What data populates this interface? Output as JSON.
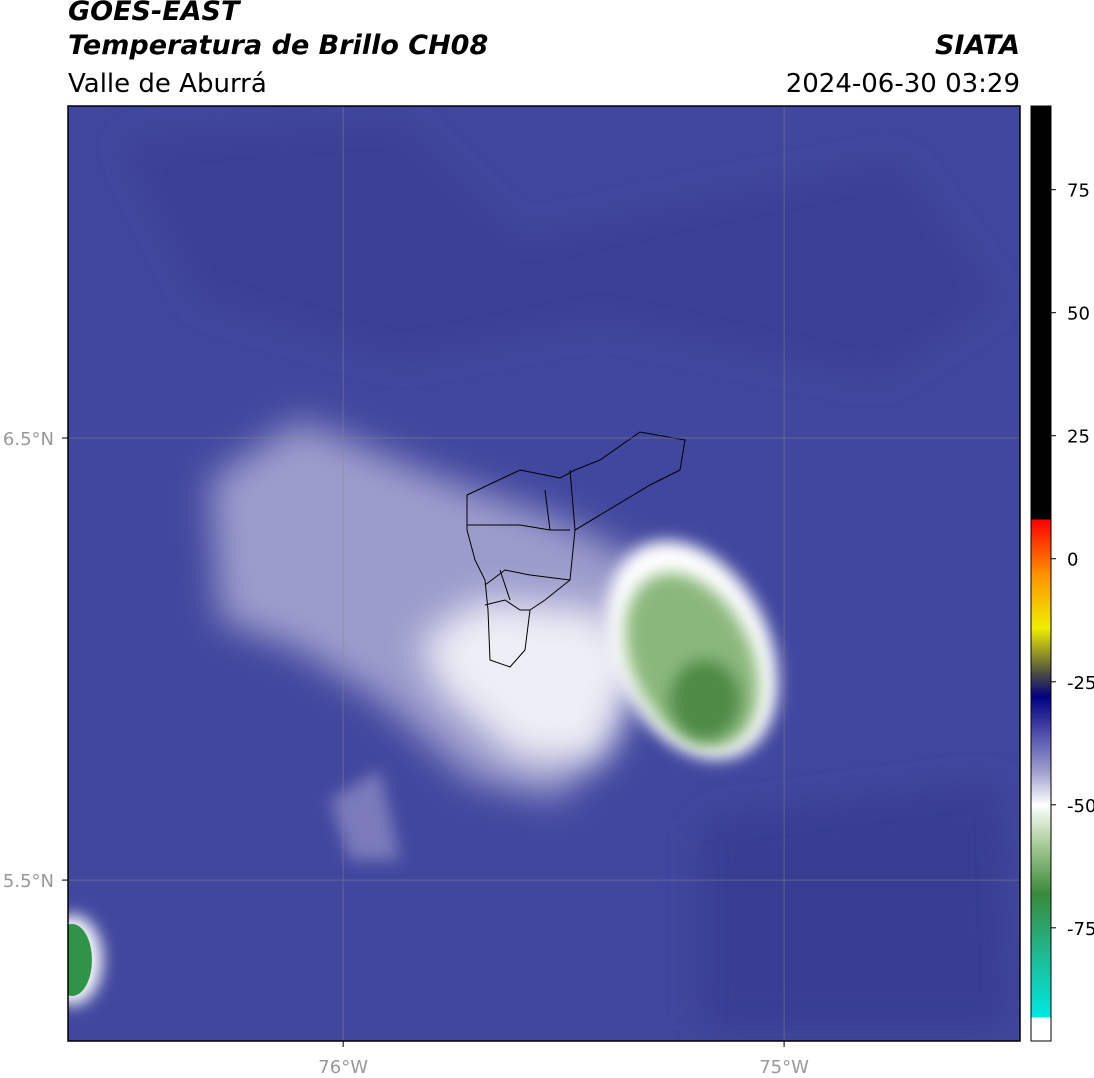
{
  "header": {
    "title": "GOES-EAST",
    "subtitle": "Temperatura de Brillo CH08",
    "region": "Valle de Aburrá",
    "organization": "SIATA",
    "datetime": "2024-06-30 03:29"
  },
  "map": {
    "xlim": [
      -76.624,
      -74.465
    ],
    "ylim": [
      5.136,
      7.251
    ],
    "xticks": [
      {
        "value": -76,
        "label": "76°W"
      },
      {
        "value": -75,
        "label": "75°W"
      }
    ],
    "yticks": [
      {
        "value": 6.5,
        "label": "6.5°N"
      },
      {
        "value": 5.5,
        "label": "5.5°N"
      }
    ]
  },
  "colorbar": {
    "lim": [
      -98,
      92
    ],
    "ticks": [
      75,
      50,
      25,
      0,
      -25,
      -50,
      -75
    ],
    "stops": [
      {
        "value": -98,
        "color": "#ffffff"
      },
      {
        "value": -93.3,
        "color": "#ffffff"
      },
      {
        "value": -93,
        "color": "#00e8e0"
      },
      {
        "value": -80,
        "color": "#20b890"
      },
      {
        "value": -68,
        "color": "#3a8a3a"
      },
      {
        "value": -58,
        "color": "#a8cc98"
      },
      {
        "value": -50,
        "color": "#ffffff"
      },
      {
        "value": -43,
        "color": "#9c9ccc"
      },
      {
        "value": -35,
        "color": "#4a4aa8"
      },
      {
        "value": -28,
        "color": "#000080"
      },
      {
        "value": -23,
        "color": "#505040"
      },
      {
        "value": -14,
        "color": "#f0f000"
      },
      {
        "value": -3,
        "color": "#ff9000"
      },
      {
        "value": 8,
        "color": "#ff0000"
      },
      {
        "value": 8.1,
        "color": "#000000"
      },
      {
        "value": 92,
        "color": "#000000"
      }
    ]
  }
}
